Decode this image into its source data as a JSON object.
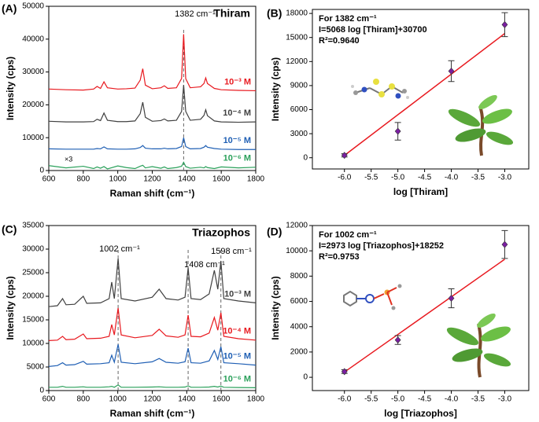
{
  "chart_data": [
    {
      "type": "line",
      "panel_label": "(A)",
      "x_label": "Raman shift (cm⁻¹)",
      "y_label": "Intensity (cps)",
      "peak_label": "1382 cm⁻¹",
      "analyte": "Thiram",
      "scale_note": "×3",
      "xlim": [
        600,
        1800
      ],
      "ylim": [
        0,
        50000
      ],
      "xticks": [
        600,
        800,
        1000,
        1200,
        1400,
        1600,
        1800
      ],
      "yticks": [
        0,
        10000,
        20000,
        30000,
        40000,
        50000
      ],
      "reference_lines": [
        1382
      ],
      "x": [
        600,
        700,
        800,
        860,
        880,
        900,
        920,
        940,
        1000,
        1050,
        1100,
        1130,
        1145,
        1160,
        1200,
        1250,
        1270,
        1290,
        1340,
        1370,
        1382,
        1394,
        1420,
        1480,
        1500,
        1510,
        1520,
        1560,
        1600,
        1700,
        1800
      ],
      "series": [
        {
          "name": "10⁻³ M",
          "color": "#e8191f",
          "values": [
            24800,
            24600,
            24500,
            24800,
            25600,
            25000,
            27000,
            25200,
            24800,
            24900,
            25100,
            27500,
            31000,
            26000,
            24900,
            25200,
            25800,
            25000,
            25200,
            28000,
            41500,
            28000,
            25200,
            25500,
            26500,
            28200,
            26500,
            25000,
            24600,
            24400,
            24300
          ]
        },
        {
          "name": "10⁻⁴ M",
          "color": "#404040",
          "values": [
            15000,
            14800,
            14800,
            14900,
            15600,
            15200,
            17500,
            15300,
            14900,
            14900,
            15100,
            17300,
            20800,
            16200,
            15000,
            15200,
            15700,
            15100,
            15300,
            18000,
            26000,
            18000,
            15300,
            15600,
            16800,
            18500,
            16700,
            15100,
            14800,
            14700,
            14800
          ]
        },
        {
          "name": "10⁻⁵ M",
          "color": "#1f5fb4",
          "values": [
            6600,
            6500,
            6500,
            6500,
            6700,
            6600,
            7200,
            6600,
            6500,
            6500,
            6600,
            7000,
            7600,
            6800,
            6600,
            6600,
            6800,
            6600,
            6700,
            7300,
            10000,
            7300,
            6600,
            6700,
            7100,
            7600,
            7100,
            6700,
            6500,
            6400,
            6400
          ]
        },
        {
          "name": "10⁻⁶ M",
          "color": "#2aa05a",
          "values": [
            1500,
            800,
            1300,
            600,
            1100,
            700,
            1200,
            500,
            1400,
            900,
            600,
            1300,
            1600,
            800,
            1200,
            700,
            1100,
            600,
            900,
            1300,
            2500,
            1200,
            700,
            1000,
            800,
            1200,
            900,
            600,
            1100,
            800,
            1000
          ]
        }
      ]
    },
    {
      "type": "scatter",
      "panel_label": "(B)",
      "x_label": "log [Thiram]",
      "y_label": "Intensity (cps)",
      "annotations": [
        "For 1382 cm⁻¹",
        "I=5068 log [Thiram]+30700",
        "R²=0.9640"
      ],
      "xlim": [
        -6.6,
        -2.55
      ],
      "ylim": [
        -1400,
        18500
      ],
      "xticks": [
        {
          "value": -6,
          "label": "-6.0"
        },
        -5.5,
        {
          "value": -5,
          "label": "-5.0"
        },
        -4.5,
        {
          "value": -4,
          "label": "-4.0"
        },
        -3.5,
        {
          "value": -3,
          "label": "-3.0"
        }
      ],
      "yticks": [
        0,
        3000,
        6000,
        9000,
        12000,
        15000,
        18000
      ],
      "points": {
        "color": "#7b1fa2",
        "x": [
          -6,
          -5,
          -4,
          -3
        ],
        "values": [
          300,
          3300,
          10800,
          16600
        ],
        "errors": [
          200,
          1100,
          1300,
          1500
        ]
      },
      "fit": {
        "color": "#e8191f",
        "x": [
          -6,
          -3
        ],
        "values": [
          292,
          15496
        ]
      }
    },
    {
      "type": "line",
      "panel_label": "(C)",
      "x_label": "Raman shift (cm⁻¹)",
      "y_label": "Intensity (cps)",
      "peak_labels": [
        "1002 cm⁻¹",
        "1408 cm⁻¹",
        "1598 cm⁻¹"
      ],
      "analyte": "Triazophos",
      "xlim": [
        600,
        1800
      ],
      "ylim": [
        0,
        35000
      ],
      "xticks": [
        600,
        800,
        1000,
        1200,
        1400,
        1600,
        1800
      ],
      "yticks": [
        0,
        5000,
        10000,
        15000,
        20000,
        25000,
        30000,
        35000
      ],
      "reference_lines": [
        1002,
        1408,
        1598
      ],
      "x": [
        600,
        650,
        680,
        700,
        750,
        800,
        820,
        900,
        950,
        965,
        980,
        1002,
        1020,
        1100,
        1200,
        1240,
        1280,
        1350,
        1390,
        1408,
        1425,
        1480,
        1530,
        1560,
        1580,
        1598,
        1615,
        1700,
        1800
      ],
      "series": [
        {
          "name": "10⁻³ M",
          "color": "#404040",
          "values": [
            17800,
            18000,
            19500,
            18200,
            18300,
            20000,
            18500,
            18600,
            19500,
            23000,
            19500,
            28000,
            19500,
            19000,
            19800,
            21500,
            19500,
            19200,
            19800,
            26000,
            19500,
            19300,
            20500,
            25500,
            21500,
            27500,
            19500,
            19000,
            18600
          ]
        },
        {
          "name": "10⁻⁴ M",
          "color": "#e8191f",
          "values": [
            10600,
            10700,
            11500,
            10800,
            10900,
            12000,
            11000,
            11100,
            11500,
            14000,
            11800,
            17500,
            11800,
            11200,
            11700,
            13000,
            11600,
            11300,
            11800,
            16000,
            11500,
            11400,
            12200,
            15500,
            12800,
            16500,
            11500,
            11000,
            10700
          ]
        },
        {
          "name": "10⁻⁵ M",
          "color": "#1f5fb4",
          "values": [
            5100,
            5300,
            5900,
            5400,
            5500,
            6200,
            5600,
            5700,
            5900,
            7500,
            6000,
            9800,
            6000,
            5700,
            6100,
            6800,
            6000,
            5800,
            6100,
            9000,
            5900,
            5800,
            6300,
            8500,
            6600,
            9300,
            5900,
            5700,
            5400
          ]
        },
        {
          "name": "10⁻⁶ M",
          "color": "#2aa05a",
          "values": [
            700,
            700,
            900,
            700,
            700,
            800,
            700,
            700,
            800,
            900,
            700,
            1200,
            700,
            700,
            750,
            800,
            700,
            700,
            750,
            1000,
            700,
            700,
            750,
            900,
            750,
            950,
            700,
            650,
            600
          ]
        }
      ]
    },
    {
      "type": "scatter",
      "panel_label": "(D)",
      "x_label": "log [Triazophos]",
      "y_label": "Intensity (cps)",
      "annotations": [
        "For 1002 cm⁻¹",
        "I=2973 log [Triazophos]+18252",
        "R²=0.9753"
      ],
      "xlim": [
        -6.6,
        -2.55
      ],
      "ylim": [
        -1050,
        12000
      ],
      "xticks": [
        {
          "value": -6,
          "label": "-6.0"
        },
        -5.5,
        {
          "value": -5,
          "label": "-5.0"
        },
        -4.5,
        {
          "value": -4,
          "label": "-4.0"
        },
        -3.5,
        {
          "value": -3,
          "label": "-3.0"
        }
      ],
      "yticks": [
        0,
        2000,
        4000,
        6000,
        8000,
        10000,
        12000
      ],
      "points": {
        "color": "#7b1fa2",
        "x": [
          -6,
          -5,
          -4,
          -3
        ],
        "values": [
          450,
          2950,
          6250,
          10500
        ],
        "errors": [
          150,
          350,
          750,
          1100
        ]
      },
      "fit": {
        "color": "#e8191f",
        "x": [
          -6,
          -3
        ],
        "values": [
          414,
          9333
        ]
      }
    }
  ]
}
